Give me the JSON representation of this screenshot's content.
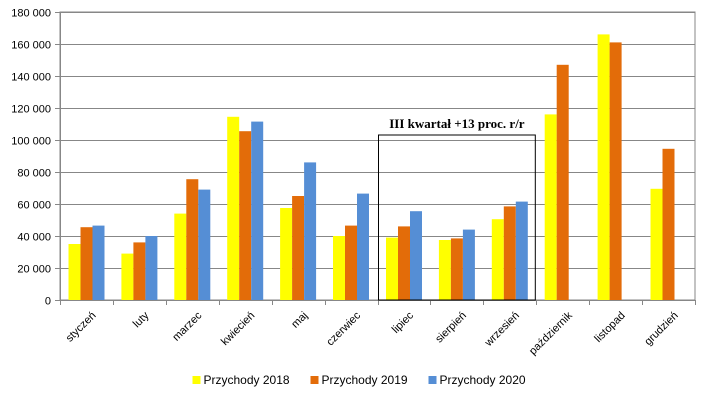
{
  "chart_data": {
    "type": "bar",
    "categories": [
      "styczeń",
      "luty",
      "marzec",
      "kwiecień",
      "maj",
      "czerwiec",
      "lipiec",
      "sierpień",
      "wrzesień",
      "październik",
      "listopad",
      "grudzień"
    ],
    "series": [
      {
        "name": "Przychody 2018",
        "color": "#ffff00",
        "values": [
          35000,
          29000,
          54000,
          114500,
          57500,
          40000,
          39000,
          37500,
          50500,
          116000,
          166000,
          69500
        ]
      },
      {
        "name": "Przychody 2019",
        "color": "#e36c09",
        "values": [
          45500,
          36000,
          75500,
          105500,
          65000,
          46500,
          46000,
          38500,
          58500,
          147000,
          161000,
          94500
        ]
      },
      {
        "name": "Przychody 2020",
        "color": "#558ed5",
        "values": [
          46500,
          40000,
          69000,
          111500,
          86000,
          66500,
          55500,
          44000,
          61500,
          null,
          null,
          null
        ]
      }
    ],
    "ylim": [
      0,
      180000
    ],
    "ytick_step": 20000,
    "ytick_labels": [
      "0",
      "20 000",
      "40 000",
      "60 000",
      "80 000",
      "100 000",
      "120 000",
      "140 000",
      "160 000",
      "180 000"
    ],
    "grid": true,
    "legend_position": "bottom",
    "annotations": [
      {
        "text": "III kwartał +13 proc. r/r",
        "from_category": "lipiec",
        "to_category": "wrzesień"
      }
    ],
    "title": "",
    "xlabel": "",
    "ylabel": ""
  }
}
